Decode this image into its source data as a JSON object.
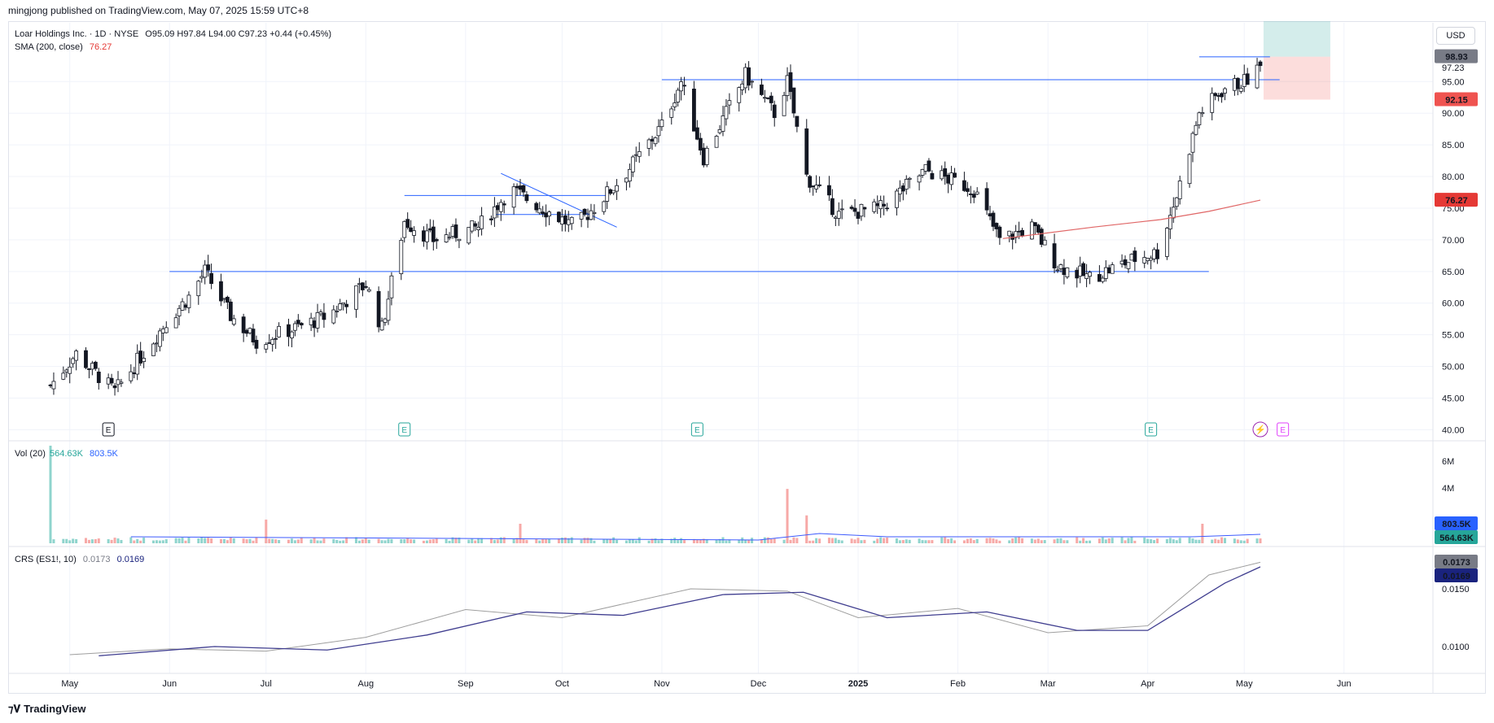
{
  "header": {
    "published": "mingjong published on TradingView.com, May 07, 2025 15:59 UTC+8",
    "currency": "USD",
    "brand": "TradingView"
  },
  "legend": {
    "symbol": "Loar Holdings Inc. · 1D · NYSE",
    "ohlc": "O95.09 H97.84 L94.00 C97.23 +0.44 (+0.45%)",
    "sma_label": "SMA (200, close)",
    "sma_value": "76.27",
    "vol_label": "Vol (20)",
    "vol_value": "564.63K",
    "vol_ma_value": "803.5K",
    "crs_label": "CRS (ES1!, 10)",
    "crs_value": "0.0173",
    "crs_ma_value": "0.0169"
  },
  "colors": {
    "up": "#26a69a",
    "down": "#ef5350",
    "candle": "#131722",
    "sma": "#e06666",
    "level": "#2962ff",
    "vol_up": "#8fd4cd",
    "vol_down": "#f7a9a7",
    "vol_ma": "#3d5afe",
    "crs": "#9e9e9e",
    "crs_ma": "#3f3d8f"
  },
  "chart_data": [
    {
      "type": "candlestick",
      "title": "Loar Holdings Inc. · 1D · NYSE",
      "ylim": [
        38,
        103
      ],
      "y_ticks": [
        40,
        45,
        50,
        55,
        60,
        65,
        70,
        75,
        80,
        85,
        90,
        95,
        97.23
      ],
      "x_labels": [
        "May",
        "Jun",
        "Jul",
        "Aug",
        "Sep",
        "Oct",
        "Nov",
        "Dec",
        "2025",
        "Feb",
        "Mar",
        "Apr",
        "May",
        "Jun"
      ],
      "price_badges": [
        {
          "label": "98.93",
          "value": 98.93,
          "color": "#787b86"
        },
        {
          "label": "92.15",
          "value": 92.15,
          "color": "#ef5350"
        },
        {
          "label": "76.27",
          "value": 76.27,
          "color": "#e53935"
        }
      ],
      "horizontal_levels": [
        65,
        77,
        95.3,
        98.9
      ],
      "close_path": [
        [
          "2024-04-25",
          47
        ],
        [
          "2024-05-03",
          52
        ],
        [
          "2024-05-15",
          46
        ],
        [
          "2024-05-31",
          57
        ],
        [
          "2024-06-07",
          61
        ],
        [
          "2024-06-12",
          65
        ],
        [
          "2024-06-20",
          58
        ],
        [
          "2024-06-28",
          54
        ],
        [
          "2024-07-10",
          56
        ],
        [
          "2024-07-20",
          58
        ],
        [
          "2024-08-01",
          63
        ],
        [
          "2024-08-06",
          56
        ],
        [
          "2024-08-13",
          73
        ],
        [
          "2024-08-22",
          70
        ],
        [
          "2024-09-05",
          72
        ],
        [
          "2024-09-15",
          78
        ],
        [
          "2024-09-25",
          75
        ],
        [
          "2024-10-05",
          72
        ],
        [
          "2024-10-20",
          80
        ],
        [
          "2024-11-01",
          88
        ],
        [
          "2024-11-07",
          95
        ],
        [
          "2024-11-14",
          83
        ],
        [
          "2024-11-21",
          90
        ],
        [
          "2024-11-27",
          96
        ],
        [
          "2024-12-06",
          90
        ],
        [
          "2024-12-10",
          95
        ],
        [
          "2024-12-16",
          80
        ],
        [
          "2024-12-26",
          74
        ],
        [
          "2025-01-08",
          75
        ],
        [
          "2025-01-22",
          81
        ],
        [
          "2025-02-06",
          78
        ],
        [
          "2025-02-14",
          70
        ],
        [
          "2025-02-24",
          72
        ],
        [
          "2025-03-04",
          66
        ],
        [
          "2025-03-14",
          64
        ],
        [
          "2025-03-28",
          67
        ],
        [
          "2025-04-04",
          68
        ],
        [
          "2025-04-10",
          77
        ],
        [
          "2025-04-17",
          90
        ],
        [
          "2025-04-25",
          94
        ],
        [
          "2025-05-01",
          95
        ],
        [
          "2025-05-06",
          97.23
        ]
      ],
      "sma_200": [
        [
          "2025-02-15",
          70.2
        ],
        [
          "2025-03-15",
          72.0
        ],
        [
          "2025-04-05",
          73.2
        ],
        [
          "2025-04-20",
          74.5
        ],
        [
          "2025-05-06",
          76.27
        ]
      ],
      "earnings_markers": [
        "2024-05-13",
        "2024-08-13",
        "2024-11-12",
        "2025-04-02",
        "2025-05-13"
      ]
    },
    {
      "type": "bar",
      "title": "Vol (20)",
      "y_ticks_label": [
        "6M",
        "4M"
      ],
      "y_tick_values": [
        6000000,
        4000000
      ],
      "last_value": 564630,
      "ma_value": 803500,
      "spikes": [
        [
          "2024-04-25",
          7000000
        ],
        [
          "2024-12-10",
          3900000
        ],
        [
          "2024-12-16",
          2000000
        ],
        [
          "2024-07-01",
          1700000
        ],
        [
          "2024-09-18",
          1400000
        ],
        [
          "2025-04-18",
          1400000
        ]
      ]
    },
    {
      "type": "line",
      "title": "CRS (ES1!, 10)",
      "y_ticks": [
        0.015,
        0.01
      ],
      "y_tick_labels": [
        "0.0150",
        "0.0100"
      ],
      "series": [
        {
          "name": "CRS",
          "values": [
            [
              "2024-05-01",
              0.0093
            ],
            [
              "2024-06-01",
              0.0098
            ],
            [
              "2024-07-01",
              0.0096
            ],
            [
              "2024-08-01",
              0.0108
            ],
            [
              "2024-09-01",
              0.0132
            ],
            [
              "2024-10-01",
              0.0125
            ],
            [
              "2024-11-10",
              0.015
            ],
            [
              "2024-12-10",
              0.0148
            ],
            [
              "2025-01-01",
              0.0125
            ],
            [
              "2025-02-01",
              0.0133
            ],
            [
              "2025-03-01",
              0.0112
            ],
            [
              "2025-04-01",
              0.0118
            ],
            [
              "2025-04-20",
              0.0162
            ],
            [
              "2025-05-06",
              0.0173
            ]
          ]
        },
        {
          "name": "MA",
          "values": [
            [
              "2024-05-10",
              0.0092
            ],
            [
              "2024-06-15",
              0.01
            ],
            [
              "2024-07-20",
              0.0097
            ],
            [
              "2024-08-20",
              0.011
            ],
            [
              "2024-09-20",
              0.013
            ],
            [
              "2024-10-20",
              0.0127
            ],
            [
              "2024-11-20",
              0.0145
            ],
            [
              "2024-12-15",
              0.0147
            ],
            [
              "2025-01-10",
              0.0125
            ],
            [
              "2025-02-10",
              0.013
            ],
            [
              "2025-03-10",
              0.0114
            ],
            [
              "2025-04-01",
              0.0114
            ],
            [
              "2025-04-25",
              0.0155
            ],
            [
              "2025-05-06",
              0.0169
            ]
          ]
        }
      ],
      "badges": [
        {
          "label": "0.0173",
          "color": "#787b86"
        },
        {
          "label": "0.0169",
          "color": "#1a237e"
        }
      ]
    }
  ]
}
